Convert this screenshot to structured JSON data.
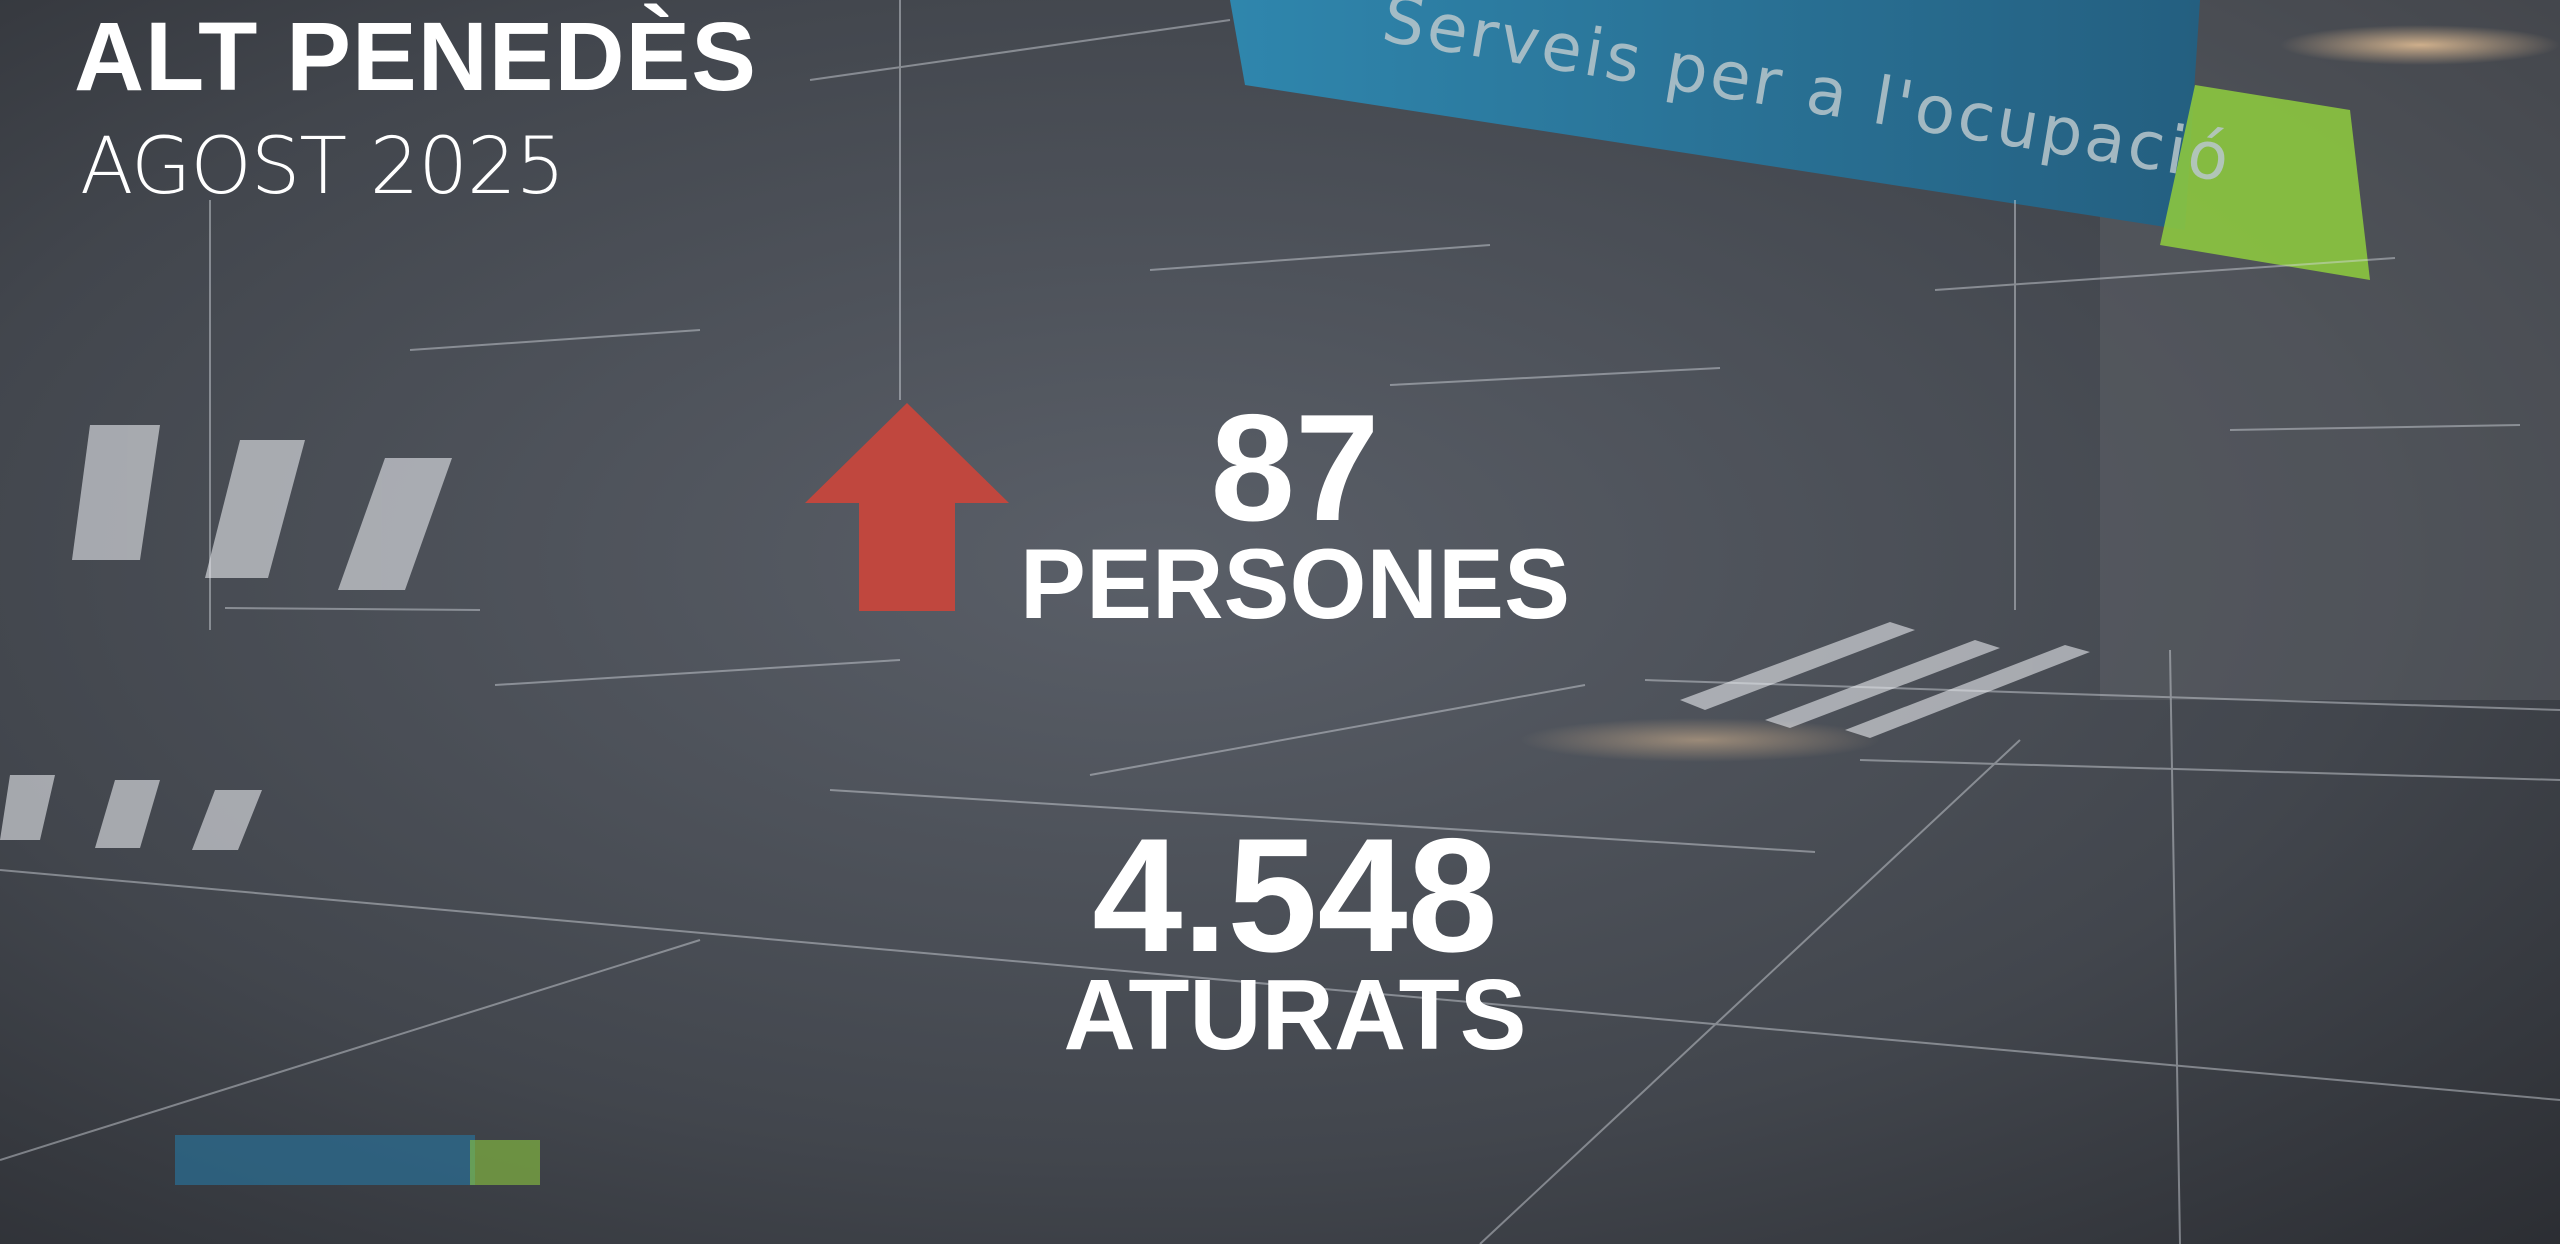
{
  "header": {
    "region": "ALT PENEDÈS",
    "period": "AGOST 2025"
  },
  "stats": {
    "change": {
      "value": "87",
      "label": "PERSONES",
      "direction": "up",
      "icon": "arrow-up-icon",
      "color": "#c0473e"
    },
    "total": {
      "value": "4.548",
      "label": "ATURATS"
    }
  },
  "background": {
    "sign_text": "Serveis per a l'ocupació",
    "sign_color": "#2a7fa8",
    "sign_accent": "#8cc63f"
  }
}
